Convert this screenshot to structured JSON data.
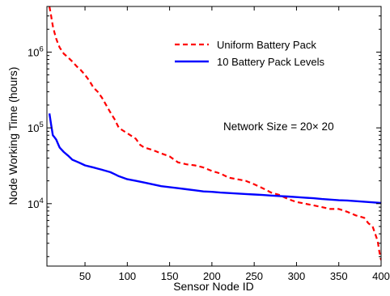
{
  "chart_data": {
    "type": "line",
    "title": "",
    "xlabel": "Sensor Node ID",
    "ylabel": "Node Working Time (hours)",
    "xlim": [
      5,
      400
    ],
    "ylim": [
      1500,
      4000000
    ],
    "yscale": "log",
    "x_ticks": [
      50,
      100,
      150,
      200,
      250,
      300,
      350,
      400
    ],
    "y_ticks": [
      {
        "value": 10000,
        "base": "10",
        "exp": "4"
      },
      {
        "value": 100000,
        "base": "10",
        "exp": "5"
      },
      {
        "value": 1000000,
        "base": "10",
        "exp": "6"
      }
    ],
    "grid": false,
    "legend_position": "top-right",
    "annotation": "Network Size = 20× 20",
    "series": [
      {
        "name": "Uniform Battery Pack",
        "color": "#ff0000",
        "style": "dashed",
        "x": [
          8,
          10,
          12,
          14,
          16,
          18,
          20,
          25,
          30,
          35,
          40,
          45,
          50,
          55,
          60,
          65,
          70,
          75,
          80,
          85,
          90,
          95,
          100,
          105,
          110,
          115,
          120,
          125,
          130,
          140,
          150,
          160,
          170,
          180,
          190,
          200,
          210,
          220,
          230,
          240,
          250,
          260,
          270,
          280,
          290,
          300,
          310,
          320,
          330,
          340,
          350,
          360,
          370,
          380,
          385,
          390,
          393,
          396,
          398,
          400
        ],
        "y": [
          4000000,
          3000000,
          2200000,
          1800000,
          1500000,
          1300000,
          1150000,
          950000,
          850000,
          750000,
          650000,
          580000,
          500000,
          420000,
          340000,
          300000,
          250000,
          200000,
          160000,
          130000,
          100000,
          92000,
          85000,
          78000,
          72000,
          60000,
          55000,
          53000,
          51000,
          46000,
          42000,
          35000,
          33000,
          32000,
          30000,
          27000,
          25000,
          22000,
          21000,
          20000,
          18000,
          16000,
          14000,
          13000,
          11500,
          10500,
          10000,
          9500,
          9000,
          8500,
          8500,
          7800,
          7000,
          6500,
          5500,
          5000,
          4000,
          3200,
          2300,
          1800
        ]
      },
      {
        "name": "10 Battery Pack Levels",
        "color": "#0000ff",
        "style": "solid",
        "x": [
          8,
          10,
          12,
          14,
          16,
          18,
          20,
          25,
          30,
          35,
          40,
          45,
          50,
          55,
          60,
          65,
          70,
          75,
          80,
          85,
          90,
          95,
          100,
          110,
          120,
          130,
          140,
          150,
          160,
          170,
          180,
          190,
          200,
          210,
          220,
          230,
          240,
          250,
          260,
          270,
          280,
          290,
          300,
          310,
          320,
          330,
          340,
          350,
          360,
          370,
          380,
          390,
          400
        ],
        "y": [
          155000,
          110000,
          80000,
          75000,
          70000,
          62000,
          55000,
          48000,
          43000,
          38000,
          36000,
          34000,
          32000,
          31000,
          30000,
          29000,
          28000,
          27000,
          26000,
          24500,
          23000,
          22000,
          21000,
          20000,
          19000,
          18000,
          17000,
          16500,
          16000,
          15500,
          15000,
          14500,
          14300,
          14000,
          13800,
          13600,
          13400,
          13200,
          13000,
          12800,
          12600,
          12400,
          12200,
          12000,
          11800,
          11500,
          11300,
          11100,
          11000,
          10800,
          10600,
          10400,
          10200
        ]
      }
    ]
  }
}
